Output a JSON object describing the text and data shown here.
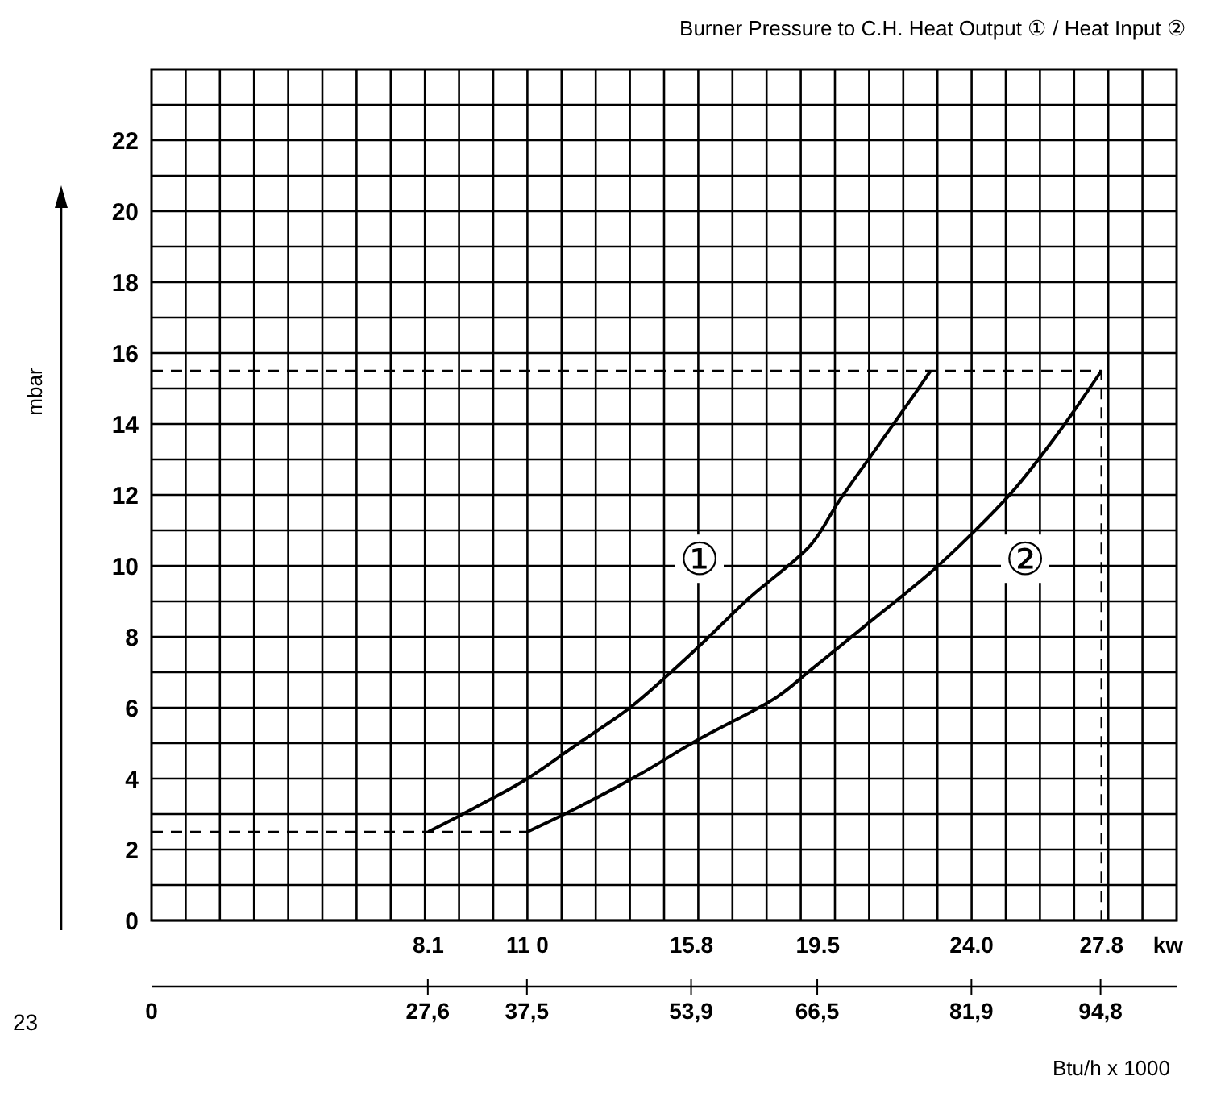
{
  "chart_data": {
    "type": "line",
    "title": "Burner Pressure to C.H. Heat Output ① / Heat Input ②",
    "ylabel": "mbar",
    "xlabel": "kw",
    "x2label": "Btu/h x 1000",
    "xlim": [
      0,
      30
    ],
    "ylim": [
      0,
      24
    ],
    "xticks": [
      {
        "value": 8.1,
        "label": "8.1"
      },
      {
        "value": 11.0,
        "label": "11 0"
      },
      {
        "value": 15.8,
        "label": "15.8"
      },
      {
        "value": 19.5,
        "label": "19.5"
      },
      {
        "value": 24.0,
        "label": "24.0"
      },
      {
        "value": 27.8,
        "label": "27.8"
      },
      {
        "value": 1,
        "label": null
      },
      {
        "value": 2,
        "label": null
      },
      {
        "value": 3,
        "label": null
      },
      {
        "value": 4,
        "label": null
      },
      {
        "value": 5,
        "label": null
      },
      {
        "value": 6,
        "label": null
      },
      {
        "value": 7,
        "label": null
      },
      {
        "value": 8,
        "label": null
      },
      {
        "value": 9,
        "label": null
      },
      {
        "value": 10,
        "label": null
      },
      {
        "value": 11,
        "label": null
      },
      {
        "value": 12,
        "label": null
      },
      {
        "value": 13,
        "label": null
      },
      {
        "value": 14,
        "label": null
      },
      {
        "value": 15,
        "label": null
      },
      {
        "value": 16,
        "label": null
      },
      {
        "value": 17,
        "label": null
      },
      {
        "value": 18,
        "label": null
      },
      {
        "value": 19,
        "label": null
      },
      {
        "value": 20,
        "label": null
      },
      {
        "value": 21,
        "label": null
      },
      {
        "value": 22,
        "label": null
      },
      {
        "value": 23,
        "label": null
      },
      {
        "value": 24,
        "label": null
      },
      {
        "value": 25,
        "label": null
      },
      {
        "value": 26,
        "label": null
      },
      {
        "value": 27,
        "label": null
      },
      {
        "value": 28,
        "label": null
      },
      {
        "value": 29,
        "label": null
      }
    ],
    "x2lim": [
      0,
      102.4
    ],
    "x2ticks": [
      0,
      {
        "value": 27.6,
        "label": "27,6"
      },
      {
        "value": 37.5,
        "label": "37,5"
      },
      {
        "value": 53.9,
        "label": "53,9"
      },
      {
        "value": 66.5,
        "label": "66,5"
      },
      {
        "value": 81.9,
        "label": "81,9"
      },
      {
        "value": 94.8,
        "label": "94,8"
      }
    ],
    "yticks": [
      0,
      {
        "value": 1,
        "label": null
      },
      2,
      {
        "value": 3,
        "label": null
      },
      4,
      {
        "value": 5,
        "label": null
      },
      6,
      {
        "value": 7,
        "label": null
      },
      8,
      {
        "value": 9,
        "label": null
      },
      10,
      {
        "value": 11,
        "label": null
      },
      12,
      {
        "value": 13,
        "label": null
      },
      14,
      {
        "value": 15,
        "label": null
      },
      16,
      {
        "value": 17,
        "label": null
      },
      18,
      {
        "value": 19,
        "label": null
      },
      20,
      {
        "value": 21,
        "label": null
      },
      22,
      {
        "value": 23,
        "label": null
      }
    ],
    "grid": true,
    "marker": "none",
    "line_style": "solid",
    "series": [
      {
        "color": "#000000",
        "x": [
          8.1,
          9.5,
          11.0,
          12.5,
          14.0,
          15.2,
          16.1,
          17.5,
          19.3,
          20.1,
          21.2,
          22.3,
          22.8
        ],
        "values": [
          2.5,
          3.2,
          4.0,
          5.0,
          6.0,
          7.0,
          7.8,
          9.1,
          10.6,
          11.8,
          13.3,
          14.8,
          15.5
        ]
      },
      {
        "color": "#000000",
        "x": [
          11.0,
          12.5,
          14.25,
          16.0,
          18.3,
          19.3,
          21.0,
          22.9,
          24.0,
          25.2,
          26.5,
          27.8
        ],
        "values": [
          2.5,
          3.2,
          4.1,
          5.1,
          6.3,
          7.07,
          8.4,
          9.9,
          10.9,
          12.1,
          13.7,
          15.5
        ]
      },
      {
        "color": "#000000",
        "line_style": "dashed",
        "x": [
          0,
          27.8,
          27.8
        ],
        "values": [
          15.5,
          15.5,
          0
        ]
      },
      {
        "color": "#000000",
        "line_style": "dashed",
        "x": [
          0,
          11.0
        ],
        "values": [
          2.5,
          2.5
        ]
      }
    ],
    "annotations": [
      "①",
      "②",
      "23"
    ]
  }
}
